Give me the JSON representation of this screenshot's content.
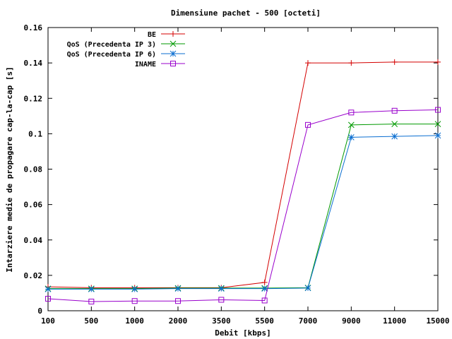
{
  "chart_data": {
    "type": "line",
    "title": "Dimensiune pachet - 500 [octeti]",
    "xlabel": "Debit [kbps]",
    "ylabel": "Intarziere medie de propagare cap-la-cap [s]",
    "categories": [
      "100",
      "500",
      "1000",
      "2000",
      "3500",
      "5500",
      "7000",
      "9000",
      "11000",
      "15000"
    ],
    "yticks": [
      "0",
      "0.02",
      "0.04",
      "0.06",
      "0.08",
      "0.1",
      "0.12",
      "0.14",
      "0.16"
    ],
    "ylim": [
      0,
      0.16
    ],
    "grid": false,
    "legend_position": "top-left",
    "series": [
      {
        "name": "BE",
        "color": "#d40000",
        "marker": "plus",
        "values": [
          0.0135,
          0.013,
          0.013,
          0.013,
          0.013,
          0.016,
          0.14,
          0.14,
          0.1405,
          0.1405
        ]
      },
      {
        "name": "QoS (Precedenta IP 3)",
        "color": "#009900",
        "marker": "cross",
        "values": [
          0.0125,
          0.0125,
          0.0125,
          0.0128,
          0.0128,
          0.0128,
          0.013,
          0.105,
          0.1055,
          0.1055
        ]
      },
      {
        "name": "QoS (Precedenta IP 6)",
        "color": "#0a6ed1",
        "marker": "star",
        "values": [
          0.0122,
          0.0122,
          0.0122,
          0.0125,
          0.0125,
          0.0125,
          0.0128,
          0.098,
          0.0985,
          0.099
        ]
      },
      {
        "name": "INAME",
        "color": "#9900cc",
        "marker": "square",
        "values": [
          0.0068,
          0.0052,
          0.0055,
          0.0055,
          0.0062,
          0.0058,
          0.105,
          0.112,
          0.113,
          0.1135
        ]
      }
    ]
  }
}
